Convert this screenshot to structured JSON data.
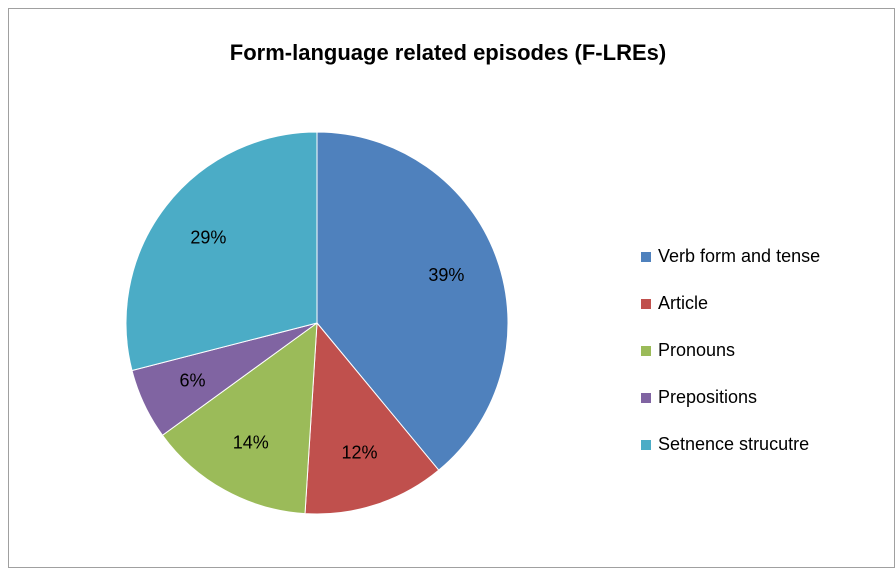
{
  "chart_data": {
    "type": "pie",
    "title": "Form-language related episodes (F-LREs)",
    "categories": [
      "Verb form and tense",
      "Article",
      "Pronouns",
      "Prepositions",
      "Setnence strucutre"
    ],
    "values": [
      39,
      12,
      14,
      6,
      29
    ],
    "value_labels": [
      "39%",
      "12%",
      "14%",
      "6%",
      "29%"
    ],
    "colors": [
      "#4f81bd",
      "#c0504d",
      "#9bbb59",
      "#8064a2",
      "#4bacc6"
    ],
    "legend": "right"
  }
}
